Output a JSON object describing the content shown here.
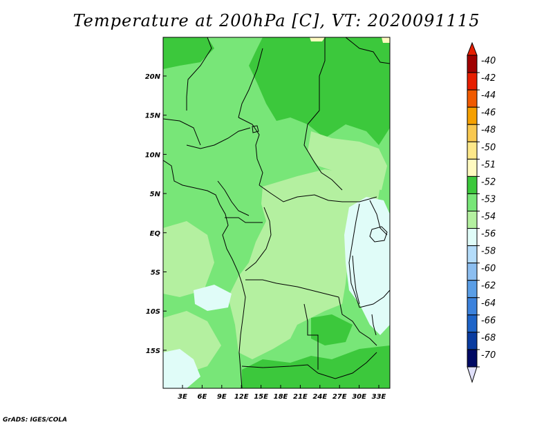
{
  "title": "Temperature at 200hPa [C], VT: 2020091115",
  "credit": "GrADS: IGES/COLA",
  "map": {
    "lat_labels": [
      "20N",
      "15N",
      "10N",
      "5N",
      "EQ",
      "5S",
      "10S",
      "15S"
    ],
    "lon_labels": [
      "3E",
      "6E",
      "9E",
      "12E",
      "15E",
      "18E",
      "21E",
      "24E",
      "27E",
      "30E",
      "33E"
    ]
  },
  "colorbar": {
    "levels": [
      {
        "label": "-40",
        "color": "#a00000"
      },
      {
        "label": "-42",
        "color": "#e61e00"
      },
      {
        "label": "-44",
        "color": "#f05a00"
      },
      {
        "label": "-46",
        "color": "#f5a000"
      },
      {
        "label": "-48",
        "color": "#f8c850"
      },
      {
        "label": "-50",
        "color": "#fde88a"
      },
      {
        "label": "-51",
        "color": "#fffac0"
      },
      {
        "label": "-52",
        "color": "#3cc83c"
      },
      {
        "label": "-53",
        "color": "#78e678"
      },
      {
        "label": "-54",
        "color": "#b4f0a0"
      },
      {
        "label": "-56",
        "color": "#e0fcf8"
      },
      {
        "label": "-58",
        "color": "#b4dcfa"
      },
      {
        "label": "-60",
        "color": "#8cbef0"
      },
      {
        "label": "-62",
        "color": "#5a9ee6"
      },
      {
        "label": "-64",
        "color": "#3c82dc"
      },
      {
        "label": "-66",
        "color": "#1e64c8"
      },
      {
        "label": "-68",
        "color": "#0a3ca0"
      },
      {
        "label": "-70",
        "color": "#000a64"
      }
    ],
    "max_color": "#e61e00",
    "min_color": "#e0e0fa"
  },
  "field_colors": {
    "c52": "#3cc83c",
    "c53": "#78e678",
    "c54": "#b4f0a0",
    "c56": "#e0fcf8",
    "c51": "#fffac0"
  }
}
